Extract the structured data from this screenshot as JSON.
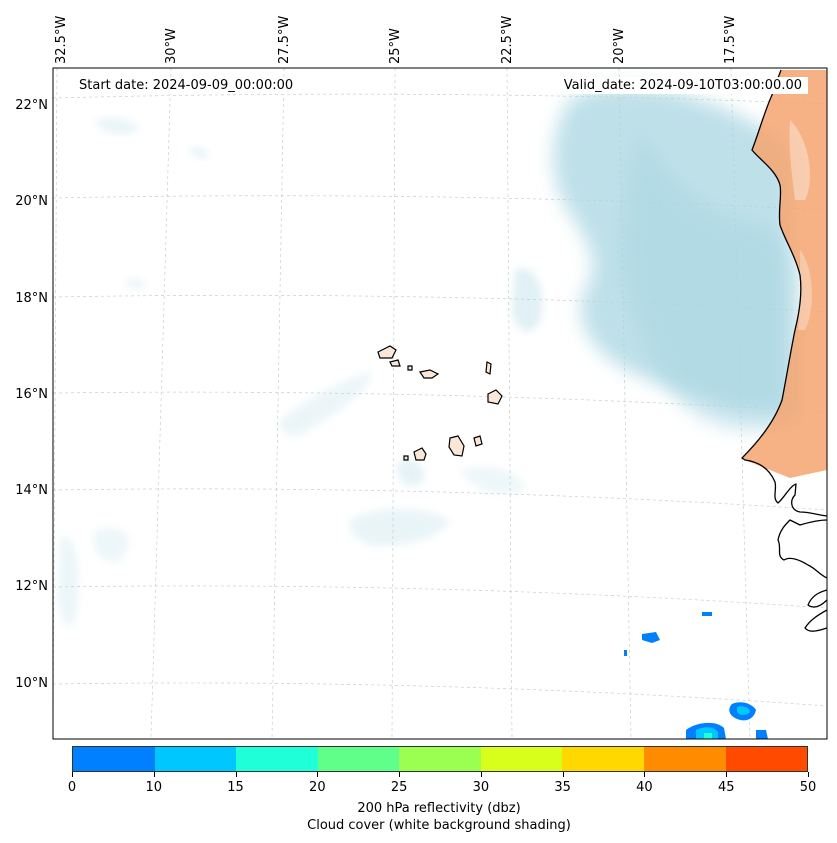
{
  "map": {
    "start_label": "Start date: 2024-09-09_00:00:00",
    "valid_label": "Valid_date: 2024-09-10T03:00:00.00",
    "lon_labels": [
      "32.5°W",
      "30°W",
      "27.5°W",
      "25°W",
      "22.5°W",
      "20°W",
      "17.5°W"
    ],
    "lat_labels": [
      "22°N",
      "20°N",
      "18°N",
      "16°N",
      "14°N",
      "12°N",
      "10°N"
    ],
    "colors": {
      "land": "#f4a46f",
      "cloud": "#a9d6e2",
      "coast": "#000000",
      "grid": "#cccccc"
    }
  },
  "colorbar": {
    "ticks": [
      "0",
      "10",
      "15",
      "20",
      "25",
      "30",
      "35",
      "40",
      "45",
      "50"
    ],
    "colors": [
      "#0080ff",
      "#00c8ff",
      "#1fffd8",
      "#5fff8a",
      "#9bff52",
      "#d8ff1c",
      "#ffd800",
      "#ff8c00",
      "#ff4a00"
    ],
    "title_line1": "200 hPa reflectivity (dbz)",
    "title_line2": "Cloud cover (white background shading)"
  }
}
